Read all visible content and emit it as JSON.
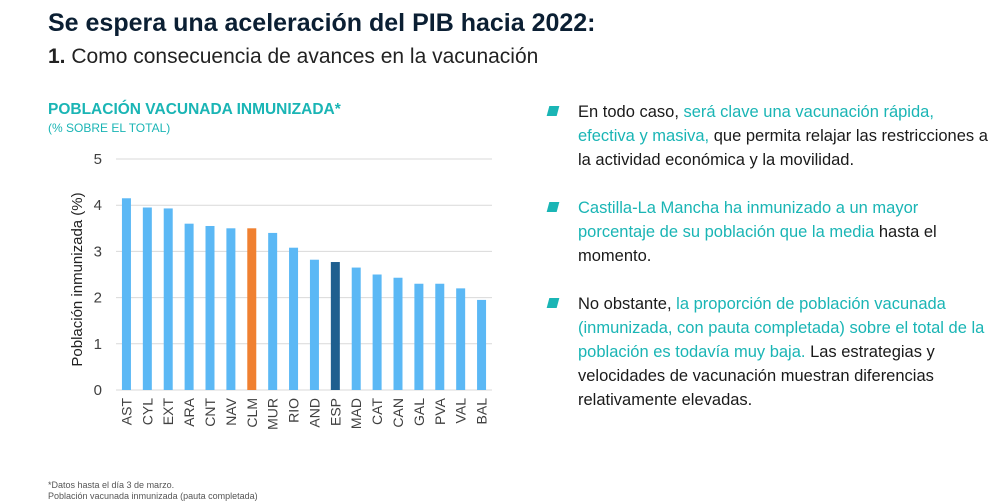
{
  "header": {
    "title": "Se espera una aceleración del PIB hacia 2022:",
    "subtitle_number": "1.",
    "subtitle_text": "Como consecuencia de avances en la vacunación"
  },
  "chart_data": {
    "type": "bar",
    "title": "POBLACIÓN VACUNADA INMUNIZADA*",
    "subtitle": "(% SOBRE EL TOTAL)",
    "xlabel": "",
    "ylabel": "Población inmunizada (%)",
    "ylim": [
      0,
      5
    ],
    "yticks": [
      0,
      1,
      2,
      3,
      4,
      5
    ],
    "grid": true,
    "categories": [
      "AST",
      "CYL",
      "EXT",
      "ARA",
      "CNT",
      "NAV",
      "CLM",
      "MUR",
      "RIO",
      "AND",
      "ESP",
      "MAD",
      "CAT",
      "CAN",
      "GAL",
      "PVA",
      "VAL",
      "BAL"
    ],
    "values": [
      4.15,
      3.95,
      3.93,
      3.6,
      3.55,
      3.5,
      3.5,
      3.4,
      3.08,
      2.82,
      2.77,
      2.65,
      2.5,
      2.43,
      2.3,
      2.3,
      2.2,
      1.95
    ],
    "colors": {
      "default": "#5bb8f5",
      "CLM": "#f08030",
      "ESP": "#1f5f8f"
    }
  },
  "footnotes": [
    "*Datos hasta el día 3 de marzo.",
    "Población vacunada inmunizada (pauta completada)"
  ],
  "bullets": [
    {
      "parts": [
        {
          "text": "En todo caso, ",
          "hl": false
        },
        {
          "text": "será clave una vacunación rápida, efectiva y masiva,",
          "hl": true
        },
        {
          "text": " que permita relajar las restricciones a la actividad económica y la movilidad.",
          "hl": false
        }
      ]
    },
    {
      "parts": [
        {
          "text": "Castilla-La Mancha ha inmunizado a un mayor porcentaje de su población que la media",
          "hl": true
        },
        {
          "text": " hasta el momento.",
          "hl": false
        }
      ]
    },
    {
      "parts": [
        {
          "text": "No obstante, ",
          "hl": false
        },
        {
          "text": "la proporción de población vacunada (inmunizada, con pauta completada) sobre el total de la población es todavía muy baja.",
          "hl": true
        },
        {
          "text": " Las estrategias y velocidades de vacunación muestran diferencias relativamente elevadas.",
          "hl": false
        }
      ]
    }
  ],
  "colors": {
    "accent": "#1ab5b5",
    "title": "#0b1f33",
    "grid": "#d9d9d9",
    "axis_text": "#404040"
  }
}
